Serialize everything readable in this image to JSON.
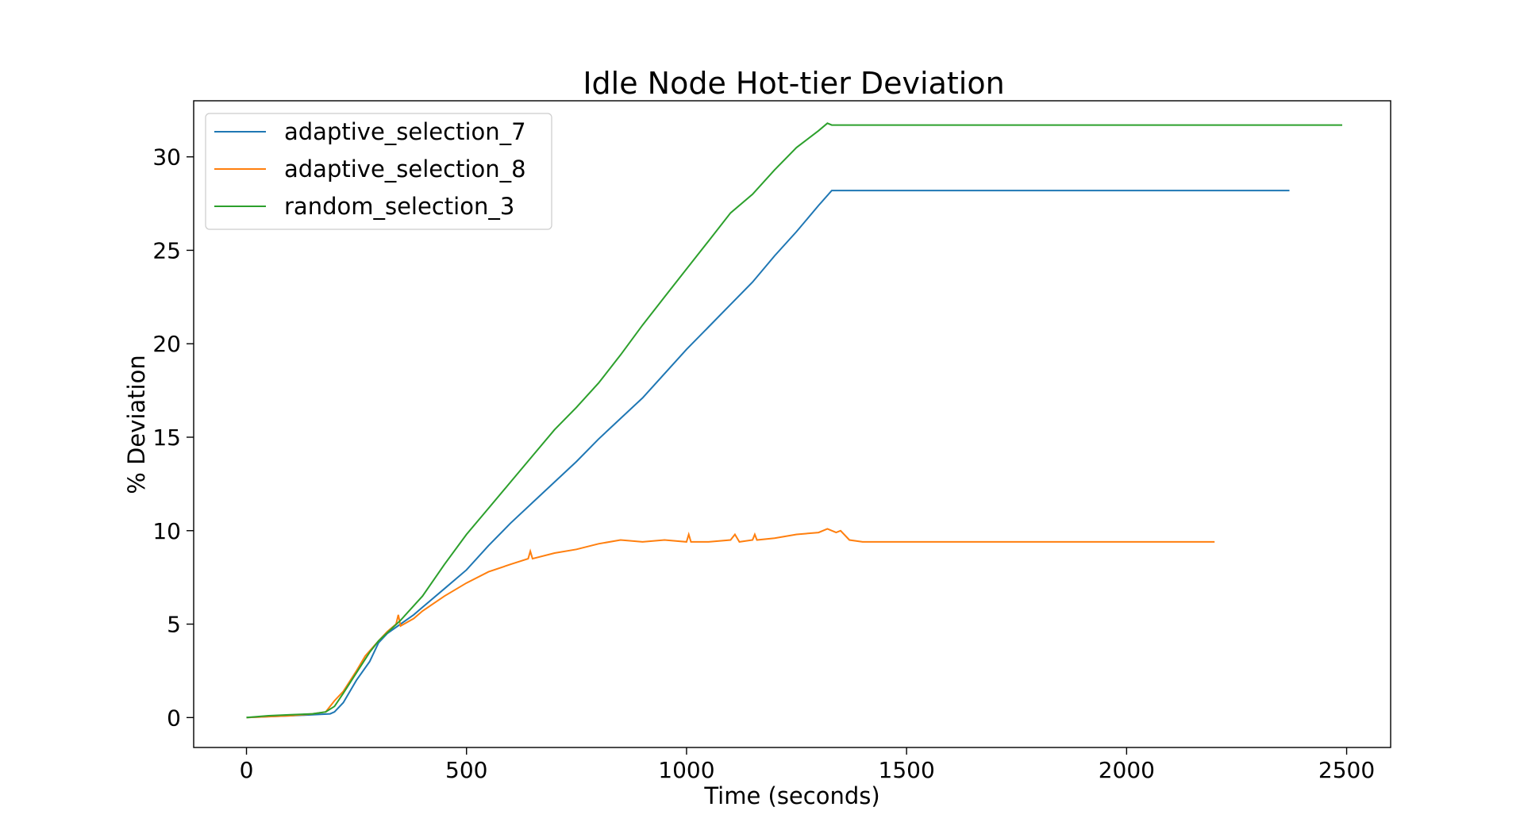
{
  "chart_data": {
    "type": "line",
    "title": "Idle Node Hot-tier Deviation",
    "xlabel": "Time (seconds)",
    "ylabel": "% Deviation",
    "xlim": [
      -120,
      2600
    ],
    "ylim": [
      -1.6,
      33.0
    ],
    "xticks": [
      0,
      500,
      1000,
      1500,
      2000,
      2500
    ],
    "yticks": [
      0,
      5,
      10,
      15,
      20,
      25,
      30
    ],
    "grid": false,
    "legend_position": "top-left",
    "series": [
      {
        "name": "adaptive_selection_7",
        "color": "#1f77b4",
        "x": [
          0,
          50,
          100,
          150,
          190,
          200,
          220,
          250,
          280,
          300,
          320,
          350,
          380,
          400,
          450,
          500,
          550,
          600,
          650,
          700,
          750,
          800,
          850,
          900,
          950,
          1000,
          1050,
          1100,
          1150,
          1200,
          1250,
          1300,
          1330,
          1400,
          1600,
          1800,
          2000,
          2200,
          2370
        ],
        "y": [
          0,
          0.05,
          0.1,
          0.15,
          0.2,
          0.3,
          0.8,
          2.0,
          3.0,
          4.0,
          4.5,
          5.0,
          5.5,
          5.9,
          6.9,
          7.9,
          9.2,
          10.4,
          11.5,
          12.6,
          13.7,
          14.9,
          16.0,
          17.1,
          18.4,
          19.7,
          20.9,
          22.1,
          23.3,
          24.7,
          26.0,
          27.4,
          28.2,
          28.2,
          28.2,
          28.2,
          28.2,
          28.2,
          28.2
        ]
      },
      {
        "name": "adaptive_selection_8",
        "color": "#ff7f0e",
        "x": [
          0,
          50,
          100,
          150,
          180,
          200,
          220,
          250,
          270,
          300,
          320,
          340,
          345,
          350,
          380,
          400,
          450,
          500,
          550,
          600,
          640,
          645,
          650,
          700,
          750,
          800,
          850,
          900,
          950,
          1000,
          1005,
          1010,
          1050,
          1100,
          1110,
          1120,
          1150,
          1155,
          1160,
          1200,
          1250,
          1300,
          1320,
          1340,
          1350,
          1370,
          1400,
          1600,
          1800,
          2000,
          2200
        ],
        "y": [
          0,
          0.05,
          0.1,
          0.2,
          0.3,
          0.9,
          1.4,
          2.5,
          3.3,
          4.1,
          4.6,
          5.0,
          5.5,
          4.9,
          5.3,
          5.7,
          6.5,
          7.2,
          7.8,
          8.2,
          8.5,
          8.9,
          8.5,
          8.8,
          9.0,
          9.3,
          9.5,
          9.4,
          9.5,
          9.4,
          9.8,
          9.4,
          9.4,
          9.5,
          9.8,
          9.4,
          9.5,
          9.8,
          9.5,
          9.6,
          9.8,
          9.9,
          10.1,
          9.9,
          10.0,
          9.5,
          9.4,
          9.4,
          9.4,
          9.4,
          9.4
        ]
      },
      {
        "name": "random_selection_3",
        "color": "#2ca02c",
        "x": [
          0,
          50,
          100,
          150,
          180,
          200,
          220,
          250,
          280,
          300,
          350,
          400,
          450,
          500,
          550,
          600,
          650,
          700,
          750,
          800,
          850,
          900,
          950,
          1000,
          1050,
          1100,
          1150,
          1200,
          1250,
          1300,
          1320,
          1330,
          1400,
          1600,
          1800,
          2000,
          2200,
          2490
        ],
        "y": [
          0,
          0.1,
          0.15,
          0.2,
          0.3,
          0.6,
          1.3,
          2.4,
          3.5,
          4.1,
          5.2,
          6.5,
          8.2,
          9.8,
          11.2,
          12.6,
          14.0,
          15.4,
          16.6,
          17.9,
          19.4,
          21.0,
          22.5,
          24.0,
          25.5,
          27.0,
          28.0,
          29.3,
          30.5,
          31.4,
          31.8,
          31.7,
          31.7,
          31.7,
          31.7,
          31.7,
          31.7,
          31.7
        ]
      }
    ]
  }
}
